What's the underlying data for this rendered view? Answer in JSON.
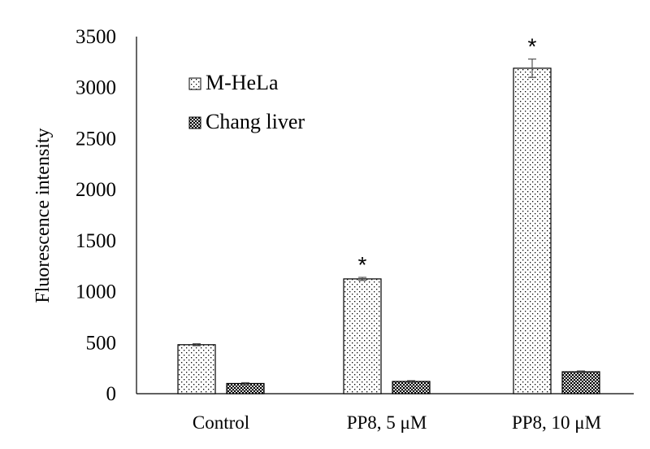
{
  "chart_data": {
    "type": "bar",
    "categories": [
      "Control",
      "PP8, 5 μM",
      "PP8, 10 μM"
    ],
    "series": [
      {
        "name": "M-HeLa",
        "values": [
          480,
          1125,
          3190
        ],
        "errors": [
          10,
          15,
          90
        ],
        "pattern": "sparse-dots",
        "significance": [
          "",
          "*",
          "*"
        ]
      },
      {
        "name": "Chang liver",
        "values": [
          100,
          120,
          215
        ],
        "errors": [
          8,
          8,
          8
        ],
        "pattern": "dense-checker",
        "significance": [
          "",
          "",
          ""
        ]
      }
    ],
    "ylabel": "Fluorescence intensity",
    "xlabel": "",
    "ylim": [
      0,
      3500
    ],
    "yticks": [
      0,
      500,
      1000,
      1500,
      2000,
      2500,
      3000,
      3500
    ],
    "grid": false,
    "legend": "top-left",
    "colors": {
      "bar_fill": "#ffffff",
      "pattern": "#000000",
      "dense_bg": "#d8d8d8",
      "axis": "#000000"
    }
  }
}
